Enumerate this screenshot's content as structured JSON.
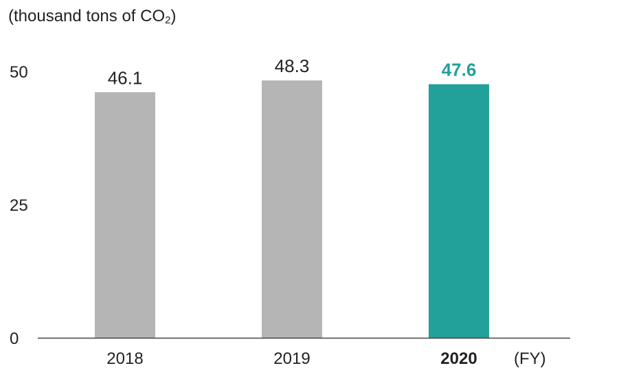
{
  "unit": {
    "prefix": "(thousand tons of CO",
    "sub": "2",
    "suffix": ")"
  },
  "x_unit": "(FY)",
  "colors": {
    "normal_bar": "#b4b5b4",
    "highlight_bar": "#22a09a",
    "highlight_text": "#22a09a",
    "text": "#222222",
    "axis": "#444444"
  },
  "chart_data": {
    "type": "bar",
    "categories": [
      "2018",
      "2019",
      "2020"
    ],
    "values": [
      46.1,
      48.3,
      47.6
    ],
    "value_labels": [
      "46.1",
      "48.3",
      "47.6"
    ],
    "highlight_index": 2,
    "ylabel": "(thousand tons of CO2)",
    "xlabel": "(FY)",
    "ylim": [
      0,
      50
    ],
    "yticks": [
      0,
      25,
      50
    ],
    "grid": false
  }
}
